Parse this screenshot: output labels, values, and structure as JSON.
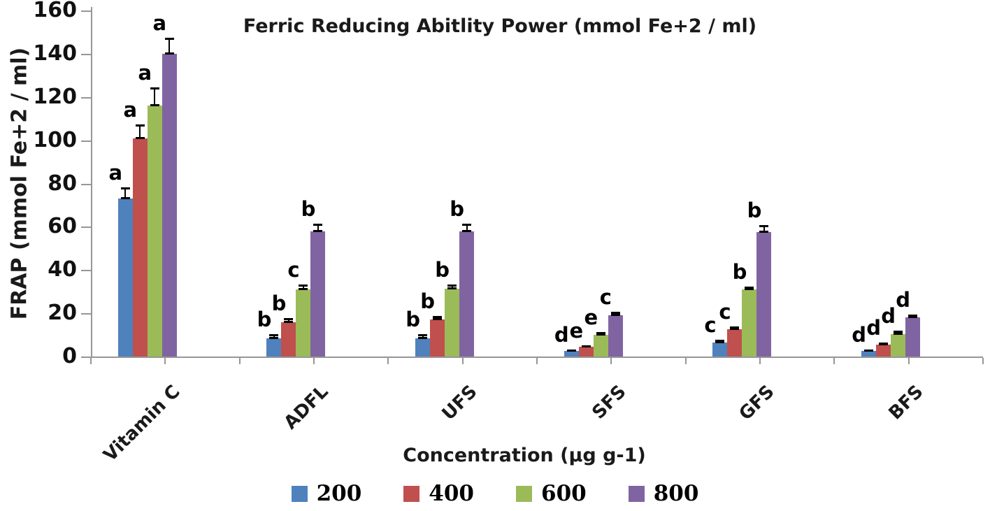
{
  "title": "Ferric Reducing Abitlity Power (mmol Fe+2 / ml)",
  "y_axis": {
    "label": "FRAP (mmol Fe+2 / ml)",
    "ticks": [
      0,
      20,
      40,
      60,
      80,
      100,
      120,
      140,
      160
    ]
  },
  "x_axis": {
    "label": "Concentration (µg g-1)"
  },
  "chart_data": {
    "type": "bar",
    "title": "Ferric Reducing Abitlity Power (mmol Fe+2 / ml)",
    "xlabel": "Concentration (µg g-1)",
    "ylabel": "FRAP (mmol Fe+2 / ml)",
    "ylim": [
      0,
      160
    ],
    "ytick_step": 20,
    "grid": false,
    "legend_position": "bottom",
    "error_bars": true,
    "categories": [
      "Vitamin C",
      "ADFL",
      "UFS",
      "SFS",
      "GFS",
      "BFS"
    ],
    "series": [
      {
        "name": "200",
        "color": "#4F81BD",
        "values": [
          73,
          8.5,
          8.5,
          2.5,
          6.5,
          2.5
        ],
        "errors": [
          5,
          1.5,
          1.5,
          0.5,
          1,
          0.5
        ],
        "letters": [
          "a",
          "b",
          "b",
          "d",
          "c",
          "d"
        ]
      },
      {
        "name": "400",
        "color": "#C0504D",
        "values": [
          101,
          16,
          17,
          4.5,
          12.5,
          5.5
        ],
        "errors": [
          6,
          1.5,
          1.5,
          0.5,
          1,
          0.5
        ],
        "letters": [
          "a",
          "b",
          "b",
          "e",
          "c",
          "d"
        ]
      },
      {
        "name": "600",
        "color": "#9BBB59",
        "values": [
          116,
          31,
          31.5,
          10,
          31,
          10.5
        ],
        "errors": [
          8,
          2,
          1.5,
          1,
          1,
          1
        ],
        "letters": [
          "a",
          "c",
          "b",
          "e",
          "b",
          "d"
        ]
      },
      {
        "name": "800",
        "color": "#8064A2",
        "values": [
          140,
          58,
          58,
          19,
          57.5,
          18
        ],
        "errors": [
          7,
          3,
          3,
          1.5,
          3,
          1
        ],
        "letters": [
          "a",
          "b",
          "b",
          "c",
          "b",
          "d"
        ]
      }
    ]
  }
}
